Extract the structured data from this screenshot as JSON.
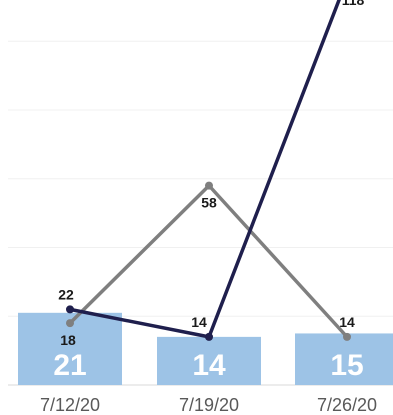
{
  "chart_data": {
    "type": "bar",
    "categories": [
      "7/12/20",
      "7/19/20",
      "7/26/20"
    ],
    "series": [
      {
        "kind": "bar",
        "values": [
          21,
          14,
          15
        ],
        "color": "#9DC3E6",
        "labels": [
          "21",
          "14",
          "15"
        ]
      },
      {
        "kind": "line",
        "values": [
          18,
          58,
          14
        ],
        "color": "#7F7F7F",
        "labels": [
          "18",
          "58",
          "14"
        ]
      },
      {
        "kind": "line",
        "values": [
          22,
          14,
          118
        ],
        "color": "#1F1F4D",
        "labels": [
          "22",
          "14",
          "118"
        ]
      }
    ],
    "ylim": [
      0,
      112
    ],
    "grid": true,
    "title": "",
    "xlabel": "",
    "ylabel": ""
  }
}
